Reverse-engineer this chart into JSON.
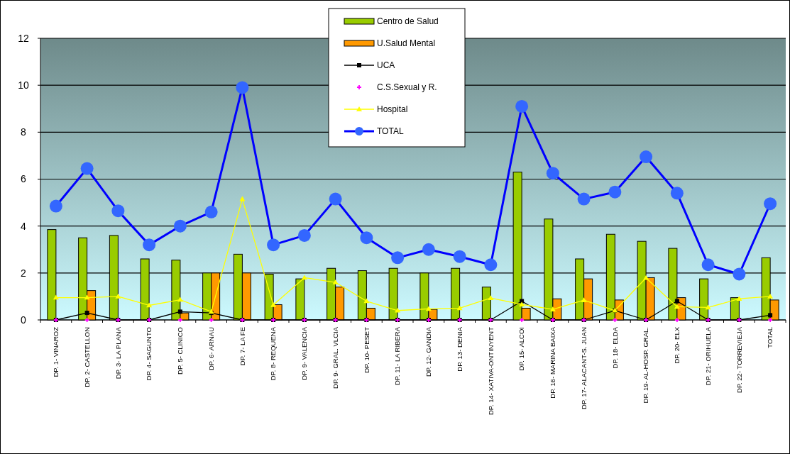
{
  "chart_data": {
    "type": "bar",
    "categories": [
      "DP. 1- VINAROZ",
      "DP. 2- CASTELLON",
      "DP. 3- LA PLANA",
      "DP. 4- SAGUNTO",
      "DP. 5- CLINICO",
      "DP. 6- ARNAU",
      "DP. 7- LA FE",
      "DP. 8- REQUENA",
      "DP. 9- VALENCIA",
      "DP. 9- GRAL. VLCIA",
      "DP. 10- PESET",
      "DP. 11- LA RIBERA",
      "DP. 12- GANDIA",
      "DP. 13- DENIA",
      "DP. 14- XATIVA-ONTINYENT",
      "DP. 15- ALCOI",
      "DP. 16- MARINA BAIXA",
      "DP. 17- ALACANT-S. JUAN",
      "DP. 18- ELDA",
      "DP. 19- AL-HOSP. GRAL.",
      "DP. 20- ELX",
      "DP. 21- ORIHUELA",
      "DP. 22- TORREVIEJA",
      "TOTAL"
    ],
    "series": [
      {
        "name": "Centro de Salud",
        "color": "#99cc00",
        "values": [
          3.85,
          3.5,
          3.6,
          2.6,
          2.55,
          2.0,
          2.8,
          1.95,
          1.75,
          2.2,
          2.1,
          2.2,
          2.0,
          2.2,
          1.4,
          6.3,
          4.3,
          2.6,
          3.65,
          3.35,
          3.05,
          1.75,
          0.95,
          2.65
        ]
      },
      {
        "name": "U.Salud Mental",
        "color": "#ff9900",
        "values": [
          null,
          1.25,
          null,
          null,
          0.3,
          2.0,
          2.0,
          0.65,
          null,
          1.4,
          0.5,
          null,
          0.45,
          null,
          null,
          0.5,
          0.9,
          1.75,
          0.85,
          1.8,
          0.95,
          null,
          null,
          0.85
        ]
      },
      {
        "name": "UCA",
        "type": "line",
        "color": "#000000",
        "marker": "square",
        "values": [
          0,
          0.3,
          0,
          0,
          0.35,
          0.3,
          0,
          0,
          0,
          0,
          0,
          0,
          0,
          0,
          0,
          0.8,
          0,
          0,
          0.4,
          0,
          0.8,
          0,
          0,
          0.2
        ]
      },
      {
        "name": "C.S.Sexual y R.",
        "type": "scatter",
        "color": "#ff00ff",
        "marker": "cross",
        "values": [
          0,
          0,
          0,
          0,
          0,
          0,
          0,
          0,
          0,
          0,
          0,
          0,
          0,
          0,
          0,
          0,
          0,
          0,
          0,
          0,
          0,
          0,
          0,
          0
        ]
      },
      {
        "name": "Hospital",
        "type": "line",
        "color": "#ffff00",
        "marker": "triangle",
        "values": [
          0.95,
          0.95,
          1.0,
          0.62,
          0.86,
          0.35,
          5.15,
          0.64,
          1.8,
          1.6,
          0.8,
          0.4,
          0.47,
          0.5,
          0.93,
          0.66,
          0.45,
          0.84,
          0.4,
          1.79,
          0.56,
          0.53,
          0.9,
          1.0
        ]
      },
      {
        "name": "TOTAL",
        "type": "line",
        "color": "#0000ff",
        "marker": "circle",
        "values": [
          4.85,
          6.45,
          4.65,
          3.2,
          4.0,
          4.6,
          9.9,
          3.2,
          3.6,
          5.15,
          3.5,
          2.65,
          3.0,
          2.7,
          2.35,
          9.1,
          6.25,
          5.15,
          5.45,
          6.95,
          5.4,
          2.35,
          1.95,
          4.95
        ]
      }
    ],
    "ylim": [
      0,
      12
    ],
    "yticks": [
      0,
      2,
      4,
      6,
      8,
      10,
      12
    ],
    "grid": "y",
    "legend": "top"
  }
}
